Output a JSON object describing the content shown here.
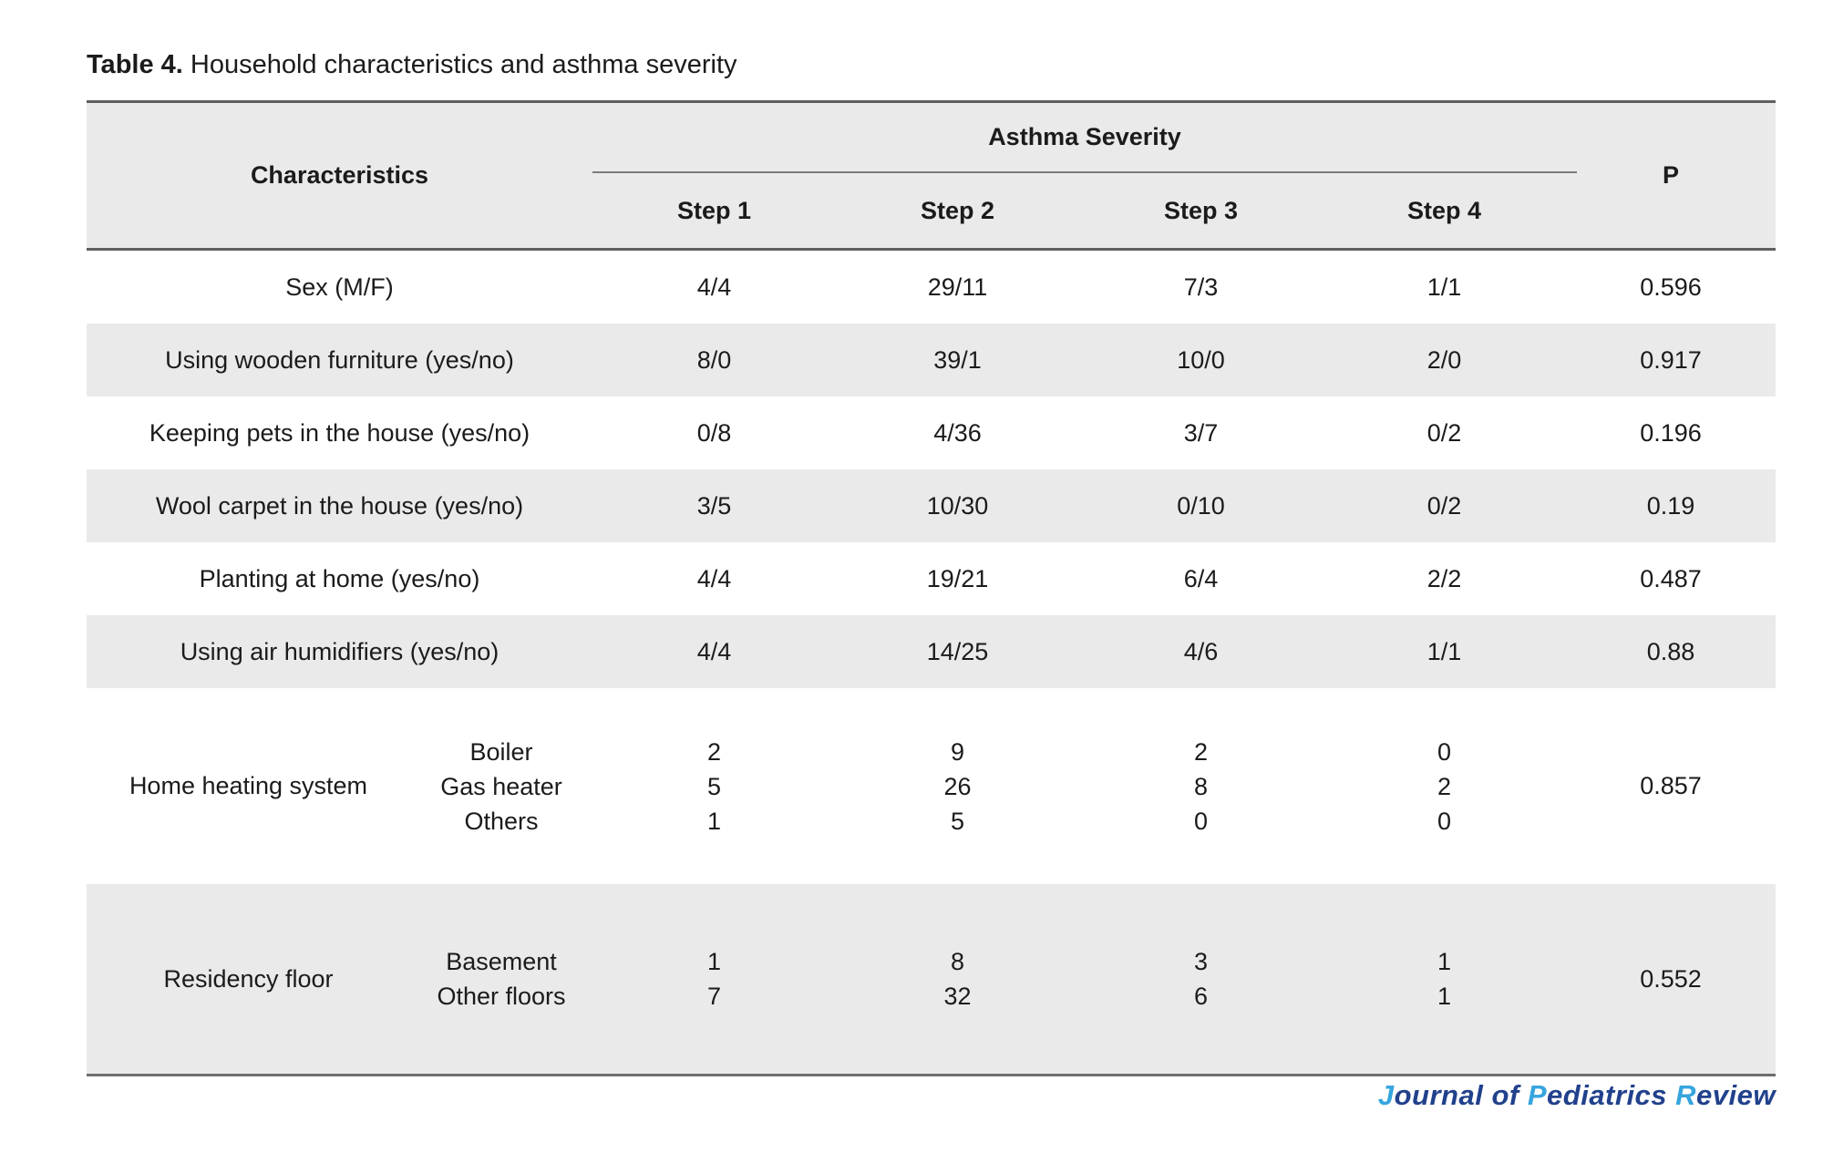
{
  "caption": {
    "label": "Table 4.",
    "text": " Household characteristics and asthma severity"
  },
  "table": {
    "header": {
      "characteristics": "Characteristics",
      "group": "Asthma Severity",
      "steps": [
        "Step 1",
        "Step 2",
        "Step 3",
        "Step 4"
      ],
      "p": "P"
    },
    "rows": [
      {
        "type": "simple",
        "shade": false,
        "label": "Sex (M/F)",
        "values": [
          "4/4",
          "29/11",
          "7/3",
          "1/1"
        ],
        "p": "0.596"
      },
      {
        "type": "simple",
        "shade": true,
        "label": "Using wooden furniture (yes/no)",
        "values": [
          "8/0",
          "39/1",
          "10/0",
          "2/0"
        ],
        "p": "0.917"
      },
      {
        "type": "simple",
        "shade": false,
        "label": "Keeping pets in the house (yes/no)",
        "values": [
          "0/8",
          "4/36",
          "3/7",
          "0/2"
        ],
        "p": "0.196"
      },
      {
        "type": "simple",
        "shade": true,
        "label": "Wool carpet in the house (yes/no)",
        "values": [
          "3/5",
          "10/30",
          "0/10",
          "0/2"
        ],
        "p": "0.19"
      },
      {
        "type": "simple",
        "shade": false,
        "label": "Planting at home (yes/no)",
        "values": [
          "4/4",
          "19/21",
          "6/4",
          "2/2"
        ],
        "p": "0.487"
      },
      {
        "type": "simple",
        "shade": true,
        "label": "Using air humidifiers (yes/no)",
        "values": [
          "4/4",
          "14/25",
          "4/6",
          "1/1"
        ],
        "p": "0.88"
      },
      {
        "type": "group",
        "shade": false,
        "label": "Home heating system",
        "p": "0.857",
        "items": [
          {
            "name": "Boiler",
            "values": [
              "2",
              "9",
              "2",
              "0"
            ]
          },
          {
            "name": "Gas heater",
            "values": [
              "5",
              "26",
              "8",
              "2"
            ]
          },
          {
            "name": "Others",
            "values": [
              "1",
              "5",
              "0",
              "0"
            ]
          }
        ]
      },
      {
        "type": "group",
        "shade": true,
        "label": "Residency floor",
        "p": "0.552",
        "items": [
          {
            "name": "Basement",
            "values": [
              "1",
              "8",
              "3",
              "1"
            ]
          },
          {
            "name": "Other floors",
            "values": [
              "7",
              "32",
              "6",
              "1"
            ]
          }
        ]
      }
    ]
  },
  "footer": {
    "segments": [
      {
        "text": "J",
        "accent": true
      },
      {
        "text": "ournal of ",
        "accent": false
      },
      {
        "text": "P",
        "accent": true
      },
      {
        "text": "ediatrics ",
        "accent": false
      },
      {
        "text": "R",
        "accent": true
      },
      {
        "text": "eview",
        "accent": false
      }
    ]
  },
  "colors": {
    "accent_light_blue": "#36A5DF",
    "accent_navy": "#21418C",
    "row_shade_gray": "#EAEAEA",
    "border_dark_gray": "#5F5F5F"
  }
}
